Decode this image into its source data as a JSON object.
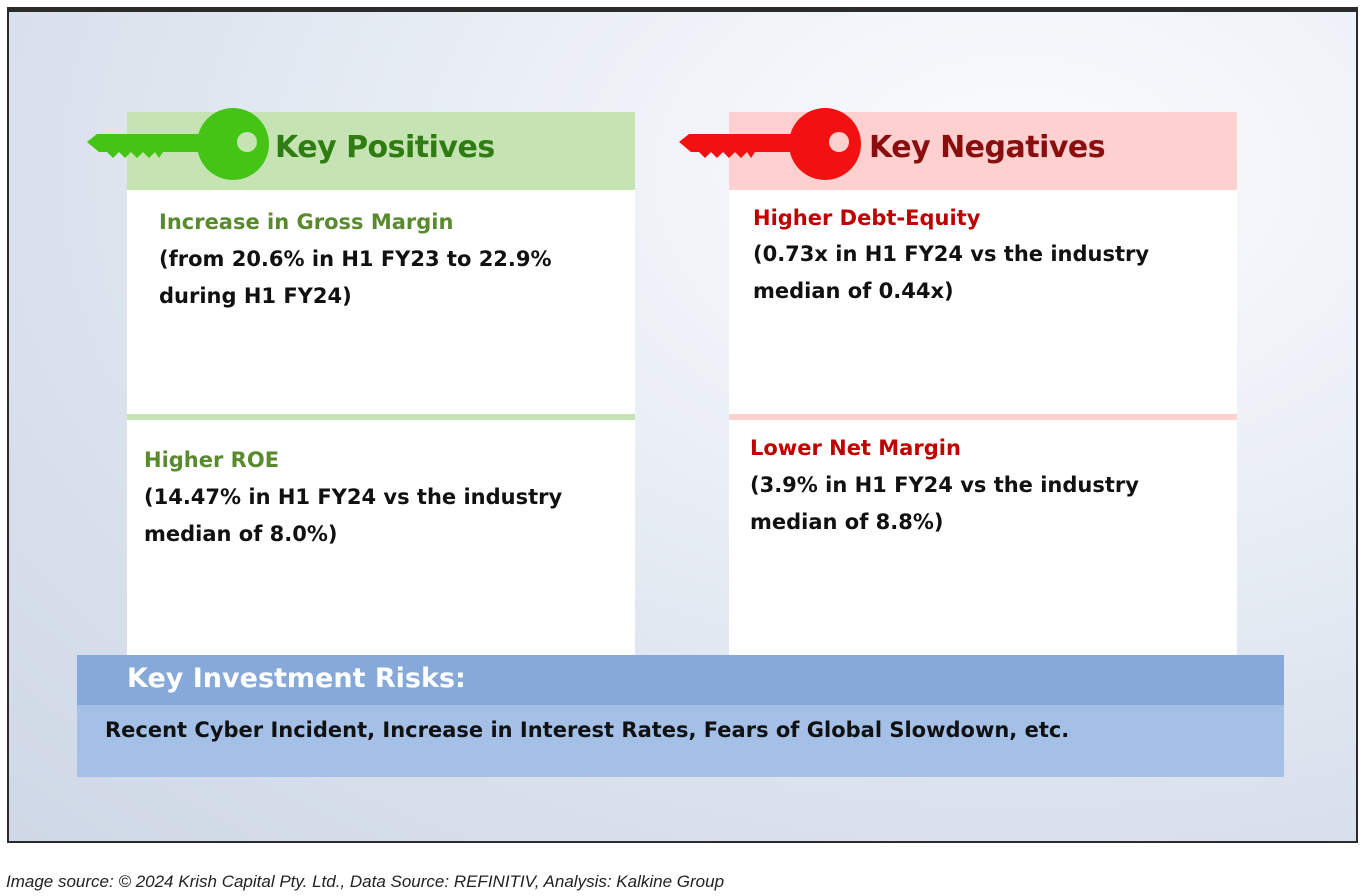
{
  "colors": {
    "positive_band": "#c5e3b3",
    "positive_key": "#44c414",
    "positive_title": "#2f7d12",
    "positive_item": "#5a8a2e",
    "negative_band": "#fed0d0",
    "negative_key": "#f21010",
    "negative_title": "#8b0e0e",
    "negative_item": "#c00000",
    "risk_header": "#86a9d9",
    "risk_body": "#a4c0e6"
  },
  "positives": {
    "title": "Key Positives",
    "icon": "key-icon",
    "items": [
      {
        "title": "Increase in Gross Margin",
        "detail": "(from 20.6% in H1 FY23 to 22.9% during H1 FY24)"
      },
      {
        "title": "Higher ROE",
        "detail": "(14.47% in H1 FY24 vs the industry median of 8.0%)"
      }
    ]
  },
  "negatives": {
    "title": "Key Negatives",
    "icon": "key-icon",
    "items": [
      {
        "title": "Higher Debt-Equity",
        "detail": "(0.73x in H1 FY24 vs the industry median of 0.44x)"
      },
      {
        "title": "Lower Net Margin",
        "detail": "(3.9% in H1 FY24 vs the industry median of 8.8%)"
      }
    ]
  },
  "risks": {
    "title": "Key Investment Risks:",
    "text": "Recent Cyber Incident, Increase in Interest Rates, Fears of Global Slowdown, etc."
  },
  "caption": "Image source: © 2024 Krish Capital Pty. Ltd., Data Source: REFINITIV, Analysis: Kalkine Group"
}
